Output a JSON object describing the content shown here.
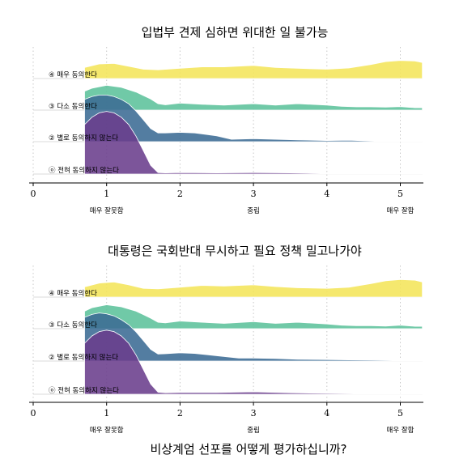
{
  "chart_data": [
    {
      "type": "area",
      "subtype": "ridgeline",
      "title": "입법부 견제 심하면 위대한 일 불가능",
      "categories": [
        "ⓞ 전혀 동의하지 않는다",
        "② 별로 동의하지 않는다",
        "③ 다소 동의한다",
        "④ 매우 동의한다"
      ],
      "xlim": [
        0,
        5.3
      ],
      "xticks": [
        0,
        1,
        2,
        3,
        4,
        5
      ],
      "xtick_labels": [
        "0",
        "1",
        "2",
        "3",
        "4",
        "5"
      ],
      "x_category_labels": [
        {
          "x": 1,
          "label": "매우 잘못함"
        },
        {
          "x": 3,
          "label": "중립"
        },
        {
          "x": 5,
          "label": "매우 잘함"
        }
      ],
      "grid": "vertical dotted",
      "series": [
        {
          "name": "ⓞ 전혀 동의하지 않는다",
          "color": "#6a3d8c",
          "x": [
            0.7,
            0.8,
            0.9,
            1.0,
            1.1,
            1.2,
            1.3,
            1.4,
            1.5,
            1.6,
            1.7,
            1.8,
            2.0,
            2.5,
            3.0,
            3.5,
            4.0,
            4.5,
            5.0,
            5.3
          ],
          "y": [
            1.7,
            1.95,
            2.1,
            2.15,
            2.1,
            1.95,
            1.7,
            1.3,
            0.8,
            0.3,
            0.05,
            0.04,
            0.05,
            0.04,
            0.05,
            0.04,
            0.02,
            0.02,
            0.02,
            0.02
          ]
        },
        {
          "name": "② 별로 동의하지 않는다",
          "color": "#3b6b94",
          "x": [
            0.7,
            0.8,
            0.9,
            1.0,
            1.1,
            1.2,
            1.3,
            1.4,
            1.5,
            1.6,
            1.7,
            1.8,
            2.0,
            2.2,
            2.5,
            2.7,
            3.0,
            3.3,
            3.6,
            4.0,
            4.3,
            4.5,
            4.7,
            5.0,
            5.3
          ],
          "y": [
            1.45,
            1.55,
            1.6,
            1.6,
            1.55,
            1.45,
            1.3,
            1.05,
            0.75,
            0.45,
            0.3,
            0.3,
            0.32,
            0.3,
            0.2,
            0.08,
            0.1,
            0.08,
            0.06,
            0.04,
            0.05,
            0.03,
            0.02,
            0.02,
            0.02
          ]
        },
        {
          "name": "③ 다소 동의한다",
          "color": "#5cc29b",
          "x": [
            0.7,
            0.8,
            1.0,
            1.2,
            1.4,
            1.5,
            1.6,
            1.7,
            1.8,
            2.0,
            2.3,
            2.6,
            3.0,
            3.3,
            3.6,
            4.0,
            4.2,
            4.4,
            4.6,
            4.8,
            5.0,
            5.2,
            5.3
          ],
          "y": [
            0.65,
            0.75,
            0.85,
            0.78,
            0.62,
            0.5,
            0.38,
            0.22,
            0.18,
            0.24,
            0.2,
            0.17,
            0.22,
            0.17,
            0.22,
            0.17,
            0.13,
            0.11,
            0.11,
            0.1,
            0.12,
            0.08,
            0.08
          ]
        },
        {
          "name": "④ 매우 동의한다",
          "color": "#f4e55a",
          "x": [
            0.7,
            0.9,
            1.1,
            1.3,
            1.5,
            1.7,
            2.0,
            2.3,
            2.6,
            3.0,
            3.3,
            3.6,
            4.0,
            4.3,
            4.6,
            4.8,
            5.0,
            5.2,
            5.3
          ],
          "y": [
            0.38,
            0.5,
            0.52,
            0.42,
            0.32,
            0.3,
            0.35,
            0.4,
            0.4,
            0.45,
            0.38,
            0.35,
            0.32,
            0.36,
            0.48,
            0.58,
            0.62,
            0.6,
            0.55
          ]
        }
      ]
    },
    {
      "type": "area",
      "subtype": "ridgeline",
      "title": "대통령은 국회반대 무시하고 필요 정책 밀고나가야",
      "categories": [
        "ⓞ 전혀 동의하지 않는다",
        "② 별로 동의하지 않는다",
        "③ 다소 동의한다",
        "④ 매우 동의한다"
      ],
      "xlim": [
        0,
        5.3
      ],
      "xticks": [
        0,
        1,
        2,
        3,
        4,
        5
      ],
      "xtick_labels": [
        "0",
        "1",
        "2",
        "3",
        "4",
        "5"
      ],
      "x_category_labels": [
        {
          "x": 1,
          "label": "매우 잘못함"
        },
        {
          "x": 3,
          "label": "중립"
        },
        {
          "x": 5,
          "label": "매우 잘함"
        }
      ],
      "grid": "vertical dotted",
      "series": [
        {
          "name": "ⓞ 전혀 동의하지 않는다",
          "color": "#6a3d8c",
          "x": [
            0.7,
            0.8,
            0.9,
            1.0,
            1.1,
            1.2,
            1.3,
            1.4,
            1.5,
            1.6,
            1.7,
            1.8,
            2.0,
            2.5,
            3.0,
            3.5,
            4.0,
            4.5,
            5.0,
            5.3
          ],
          "y": [
            1.75,
            2.0,
            2.15,
            2.2,
            2.15,
            2.0,
            1.75,
            1.35,
            0.85,
            0.35,
            0.07,
            0.05,
            0.06,
            0.06,
            0.08,
            0.05,
            0.03,
            0.02,
            0.02,
            0.02
          ]
        },
        {
          "name": "② 별로 동의하지 않는다",
          "color": "#3b6b94",
          "x": [
            0.7,
            0.8,
            0.9,
            1.0,
            1.1,
            1.2,
            1.3,
            1.4,
            1.5,
            1.6,
            1.7,
            1.8,
            2.0,
            2.2,
            2.5,
            2.8,
            3.0,
            3.3,
            3.6,
            4.0,
            4.3,
            4.6,
            5.0,
            5.3
          ],
          "y": [
            1.5,
            1.6,
            1.65,
            1.62,
            1.55,
            1.42,
            1.25,
            1.0,
            0.7,
            0.4,
            0.24,
            0.25,
            0.28,
            0.26,
            0.18,
            0.1,
            0.1,
            0.09,
            0.06,
            0.05,
            0.04,
            0.03,
            0.02,
            0.02
          ]
        },
        {
          "name": "③ 다소 동의한다",
          "color": "#5cc29b",
          "x": [
            0.7,
            0.8,
            1.0,
            1.2,
            1.4,
            1.5,
            1.6,
            1.7,
            1.8,
            2.0,
            2.3,
            2.6,
            3.0,
            3.3,
            3.6,
            4.0,
            4.2,
            4.4,
            4.6,
            4.8,
            5.0,
            5.2,
            5.3
          ],
          "y": [
            0.6,
            0.72,
            0.82,
            0.75,
            0.6,
            0.48,
            0.36,
            0.22,
            0.2,
            0.26,
            0.22,
            0.18,
            0.24,
            0.18,
            0.22,
            0.16,
            0.12,
            0.1,
            0.1,
            0.09,
            0.12,
            0.08,
            0.08
          ]
        },
        {
          "name": "④ 매우 동의한다",
          "color": "#f4e55a",
          "x": [
            0.7,
            0.9,
            1.1,
            1.3,
            1.5,
            1.7,
            2.0,
            2.3,
            2.6,
            3.0,
            3.3,
            3.6,
            4.0,
            4.3,
            4.6,
            4.8,
            5.0,
            5.2,
            5.3
          ],
          "y": [
            0.35,
            0.48,
            0.52,
            0.42,
            0.3,
            0.28,
            0.34,
            0.4,
            0.38,
            0.42,
            0.36,
            0.32,
            0.3,
            0.34,
            0.46,
            0.56,
            0.6,
            0.58,
            0.52
          ]
        }
      ]
    }
  ],
  "shared_xlabel": "비상계엄 선포를 어떻게 평가하십니까?"
}
